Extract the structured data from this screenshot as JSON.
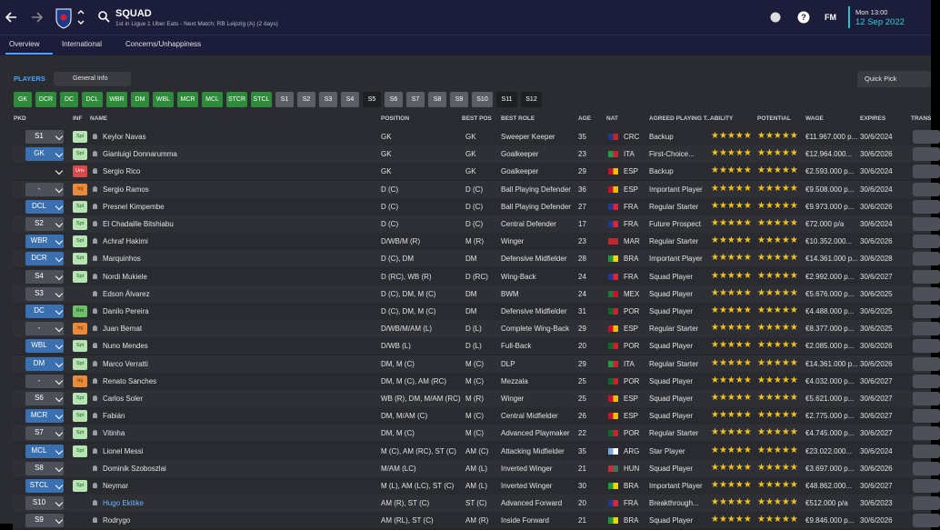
{
  "header": {
    "title": "SQUAD",
    "subtitle": "1st in Ligue 1 Uber Eats - Next Match: RB Leipzig (A) (2 days)",
    "time": "Mon 13:00",
    "date": "12 Sep 2022",
    "logo": "FM"
  },
  "tabs": [
    "Overview",
    "International",
    "Concerns/Unhappiness"
  ],
  "toolbar": {
    "label": "PLAYERS",
    "view": "General Info",
    "quick_pick": "Quick Pick"
  },
  "filters": [
    {
      "label": "GK",
      "color": "#2e8b3a"
    },
    {
      "label": "DCR",
      "color": "#2e8b3a"
    },
    {
      "label": "DC",
      "color": "#2e8b3a"
    },
    {
      "label": "DCL",
      "color": "#2e8b3a"
    },
    {
      "label": "WBR",
      "color": "#2e8b3a"
    },
    {
      "label": "DM",
      "color": "#2e8b3a"
    },
    {
      "label": "WBL",
      "color": "#2e8b3a"
    },
    {
      "label": "MCR",
      "color": "#2e8b3a"
    },
    {
      "label": "MCL",
      "color": "#2e8b3a"
    },
    {
      "label": "STCR",
      "color": "#2e8b3a"
    },
    {
      "label": "STCL",
      "color": "#2e8b3a"
    },
    {
      "label": "S1",
      "color": "#5b5e66"
    },
    {
      "label": "S2",
      "color": "#5b5e66"
    },
    {
      "label": "S3",
      "color": "#5b5e66"
    },
    {
      "label": "S4",
      "color": "#5b5e66"
    },
    {
      "label": "S5",
      "color": "#1f2024"
    },
    {
      "label": "S6",
      "color": "#5b5e66"
    },
    {
      "label": "S7",
      "color": "#5b5e66"
    },
    {
      "label": "S8",
      "color": "#5b5e66"
    },
    {
      "label": "S9",
      "color": "#5b5e66"
    },
    {
      "label": "S10",
      "color": "#5b5e66"
    },
    {
      "label": "S11",
      "color": "#1f2024"
    },
    {
      "label": "S12",
      "color": "#1f2024"
    }
  ],
  "table": {
    "columns": [
      "PKD",
      "INF",
      "NAME",
      "POSITION",
      "BEST POS",
      "BEST ROLE",
      "AGE",
      "NAT",
      "AGREED PLAYING T...",
      "ABILITY",
      "POTENTIAL",
      "WAGE",
      "EXPIRES",
      "TRANS"
    ],
    "rows": [
      {
        "pkd": "S1",
        "inf": "Spt",
        "name": "Keylor Navas",
        "position": "GK",
        "best_pos": "GK",
        "best_role": "Sweeper Keeper",
        "age": 35,
        "nat": "CRC",
        "status": "Backup",
        "ability": 3,
        "potential": 3,
        "wage": "€11.967.000 p...",
        "expires": "30/6/2024"
      },
      {
        "pkd": "GK",
        "inf": "Spt",
        "name": "Gianluigi Donnarumma",
        "position": "GK",
        "best_pos": "GK",
        "best_role": "Goalkeeper",
        "age": 23,
        "nat": "ITA",
        "status": "First-Choice...",
        "ability": 4.5,
        "potential": 4.5,
        "wage": "€12.964.000...",
        "expires": "30/6/2026"
      },
      {
        "inf": "Unv",
        "name": "Sergio Rico",
        "position": "GK",
        "best_pos": "GK",
        "best_role": "Goalkeeper",
        "age": 29,
        "nat": "ESP",
        "status": "Backup",
        "ability": 2,
        "potential": 2,
        "wage": "€2.593.000 p...",
        "expires": "30/6/2024"
      },
      {
        "pkd": "-",
        "inf": "Inj",
        "name": "Sergio Ramos",
        "position": "D (C)",
        "best_pos": "D (C)",
        "best_role": "Ball Playing Defender",
        "age": 36,
        "nat": "ESP",
        "status": "Important Player",
        "ability": 3.5,
        "potential": 3.5,
        "wage": "€9.508.000 p...",
        "expires": "30/6/2024"
      },
      {
        "pkd": "DCL",
        "inf": "Spt",
        "name": "Presnel Kimpembe",
        "position": "D (C)",
        "best_pos": "D (C)",
        "best_role": "Ball Playing Defender",
        "age": 27,
        "nat": "FRA",
        "status": "Regular Starter",
        "ability": 3.5,
        "potential": 3.5,
        "wage": "€9.973.000 p...",
        "expires": "30/6/2026"
      },
      {
        "pkd": "S2",
        "inf": "Spt",
        "name": "El Chadaille Bitshiabu",
        "position": "D (C)",
        "best_pos": "D (C)",
        "best_role": "Central Defender",
        "age": 17,
        "nat": "FRA",
        "status": "Future Prospect",
        "ability": 1.5,
        "potential": 4,
        "wage": "€72.000 p/a",
        "expires": "30/6/2024"
      },
      {
        "pkd": "WBR",
        "inf": "Spt",
        "name": "Achraf Hakimi",
        "position": "D/WB/M (R)",
        "best_pos": "M (R)",
        "best_role": "Winger",
        "age": 23,
        "nat": "MAR",
        "status": "Regular Starter",
        "ability": 4,
        "potential": 4,
        "wage": "€10.352.000...",
        "expires": "30/6/2026"
      },
      {
        "pkd": "DCR",
        "inf": "Spt",
        "name": "Marquinhos",
        "position": "D (C), DM",
        "best_pos": "DM",
        "best_role": "Defensive Midfielder",
        "age": 28,
        "nat": "BRA",
        "status": "Important Player",
        "ability": 4.5,
        "potential": 4.5,
        "wage": "€14.361.000 p...",
        "expires": "30/6/2028"
      },
      {
        "pkd": "S4",
        "inf": "Spt",
        "name": "Nordi Mukiele",
        "position": "D (RC), WB (R)",
        "best_pos": "D (RC)",
        "best_role": "Wing-Back",
        "age": 24,
        "nat": "FRA",
        "status": "Squad Player",
        "ability": 2.5,
        "potential": 2.5,
        "wage": "€2.992.000 p...",
        "expires": "30/6/2027"
      },
      {
        "pkd": "S3",
        "name": "Edson Álvarez",
        "position": "D (C), DM, M (C)",
        "best_pos": "DM",
        "best_role": "BWM",
        "age": 24,
        "nat": "MEX",
        "status": "Squad Player",
        "ability": 3,
        "potential": 3,
        "wage": "€5.676.000 p...",
        "expires": "30/6/2025"
      },
      {
        "pkd": "DC",
        "inf": "Rm",
        "name": "Danilo Pereira",
        "position": "D (C), DM, M (C)",
        "best_pos": "DM",
        "best_role": "Defensive Midfielder",
        "age": 31,
        "nat": "POR",
        "status": "Squad Player",
        "ability": 3,
        "potential": 3,
        "wage": "€4.488.000 p...",
        "expires": "30/6/2025"
      },
      {
        "pkd": "-",
        "inf": "Inj",
        "name": "Juan Bernat",
        "position": "D/WB/M/AM (L)",
        "best_pos": "D (L)",
        "best_role": "Complete Wing-Back",
        "age": 29,
        "nat": "ESP",
        "status": "Regular Starter",
        "ability": 2.5,
        "potential": 2.5,
        "wage": "€8.377.000 p...",
        "expires": "30/6/2025"
      },
      {
        "pkd": "WBL",
        "inf": "Spt",
        "name": "Nuno Mendes",
        "position": "D/WB (L)",
        "best_pos": "D (L)",
        "best_role": "Full-Back",
        "age": 20,
        "nat": "POR",
        "status": "Squad Player",
        "ability": 2.5,
        "potential": 4.5,
        "wage": "€2.085.000 p...",
        "expires": "30/6/2026"
      },
      {
        "pkd": "DM",
        "inf": "Spt",
        "name": "Marco Verratti",
        "position": "DM, M (C)",
        "best_pos": "M (C)",
        "best_role": "DLP",
        "age": 29,
        "nat": "ITA",
        "status": "Regular Starter",
        "ability": 4,
        "potential": 4,
        "wage": "€14.361.000 p...",
        "expires": "30/6/2026"
      },
      {
        "pkd": "-",
        "inf": "Inj",
        "name": "Renato Sanches",
        "position": "DM, M (C), AM (RC)",
        "best_pos": "M (C)",
        "best_role": "Mezzala",
        "age": 25,
        "nat": "POR",
        "status": "Squad Player",
        "ability": 2.5,
        "potential": 3,
        "wage": "€4.032.000 p...",
        "expires": "30/6/2027"
      },
      {
        "pkd": "S6",
        "inf": "Spt",
        "name": "Carlos Soler",
        "position": "WB (R), DM, M/AM (RC)",
        "best_pos": "M (R)",
        "best_role": "Winger",
        "age": 25,
        "nat": "ESP",
        "status": "Squad Player",
        "ability": 3,
        "potential": 3,
        "wage": "€5.621.000 p...",
        "expires": "30/6/2027"
      },
      {
        "pkd": "MCR",
        "inf": "Spt",
        "name": "Fabián",
        "position": "DM, M/AM (C)",
        "best_pos": "M (C)",
        "best_role": "Central Midfielder",
        "age": 26,
        "nat": "ESP",
        "status": "Squad Player",
        "ability": 3,
        "potential": 3,
        "wage": "€2.775.000 p...",
        "expires": "30/6/2027"
      },
      {
        "pkd": "S7",
        "inf": "Spt",
        "name": "Vitinha",
        "position": "DM, M (C)",
        "best_pos": "M (C)",
        "best_role": "Advanced Playmaker",
        "age": 22,
        "nat": "POR",
        "status": "Regular Starter",
        "ability": 2.5,
        "potential": 3,
        "wage": "€4.745.000 p...",
        "expires": "30/6/2027"
      },
      {
        "pkd": "MCL",
        "inf": "Spt",
        "name": "Lionel Messi",
        "position": "M (C), AM (RC), ST (C)",
        "best_pos": "AM (C)",
        "best_role": "Attacking Midfielder",
        "age": 35,
        "nat": "ARG",
        "status": "Star Player",
        "ability": 4.5,
        "potential": 4.5,
        "wage": "€23.022.000...",
        "expires": "30/6/2024"
      },
      {
        "pkd": "S8",
        "name": "Dominik Szoboszlai",
        "position": "M/AM (LC)",
        "best_pos": "AM (L)",
        "best_role": "Inverted Winger",
        "age": 21,
        "nat": "HUN",
        "status": "Squad Player",
        "ability": 3,
        "potential": 4.5,
        "wage": "€3.697.000 p...",
        "expires": "30/6/2026"
      },
      {
        "pkd": "STCL",
        "inf": "Spt",
        "name": "Neymar",
        "position": "M (L), AM (LC), ST (C)",
        "best_pos": "AM (L)",
        "best_role": "Inverted Winger",
        "age": 30,
        "nat": "BRA",
        "status": "Important Player",
        "ability": 4.5,
        "potential": 4.5,
        "wage": "€48.862.000...",
        "expires": "30/6/2027"
      },
      {
        "pkd": "S10",
        "name": "Hugo Ekitike",
        "position": "AM (R), ST (C)",
        "best_pos": "ST (C)",
        "best_role": "Advanced Forward",
        "age": 20,
        "nat": "FRA",
        "status": "Breakthrough...",
        "ability": 2,
        "potential": 4,
        "wage": "€512.000 p/a",
        "expires": "30/6/2023"
      },
      {
        "pkd": "S9",
        "name": "Rodrygo",
        "position": "AM (RL), ST (C)",
        "best_pos": "AM (R)",
        "best_role": "Inside Forward",
        "age": 21,
        "nat": "BRA",
        "status": "Squad Player",
        "ability": 3,
        "potential": 4,
        "wage": "€9.846.000 p...",
        "expires": "30/6/2026"
      }
    ]
  }
}
